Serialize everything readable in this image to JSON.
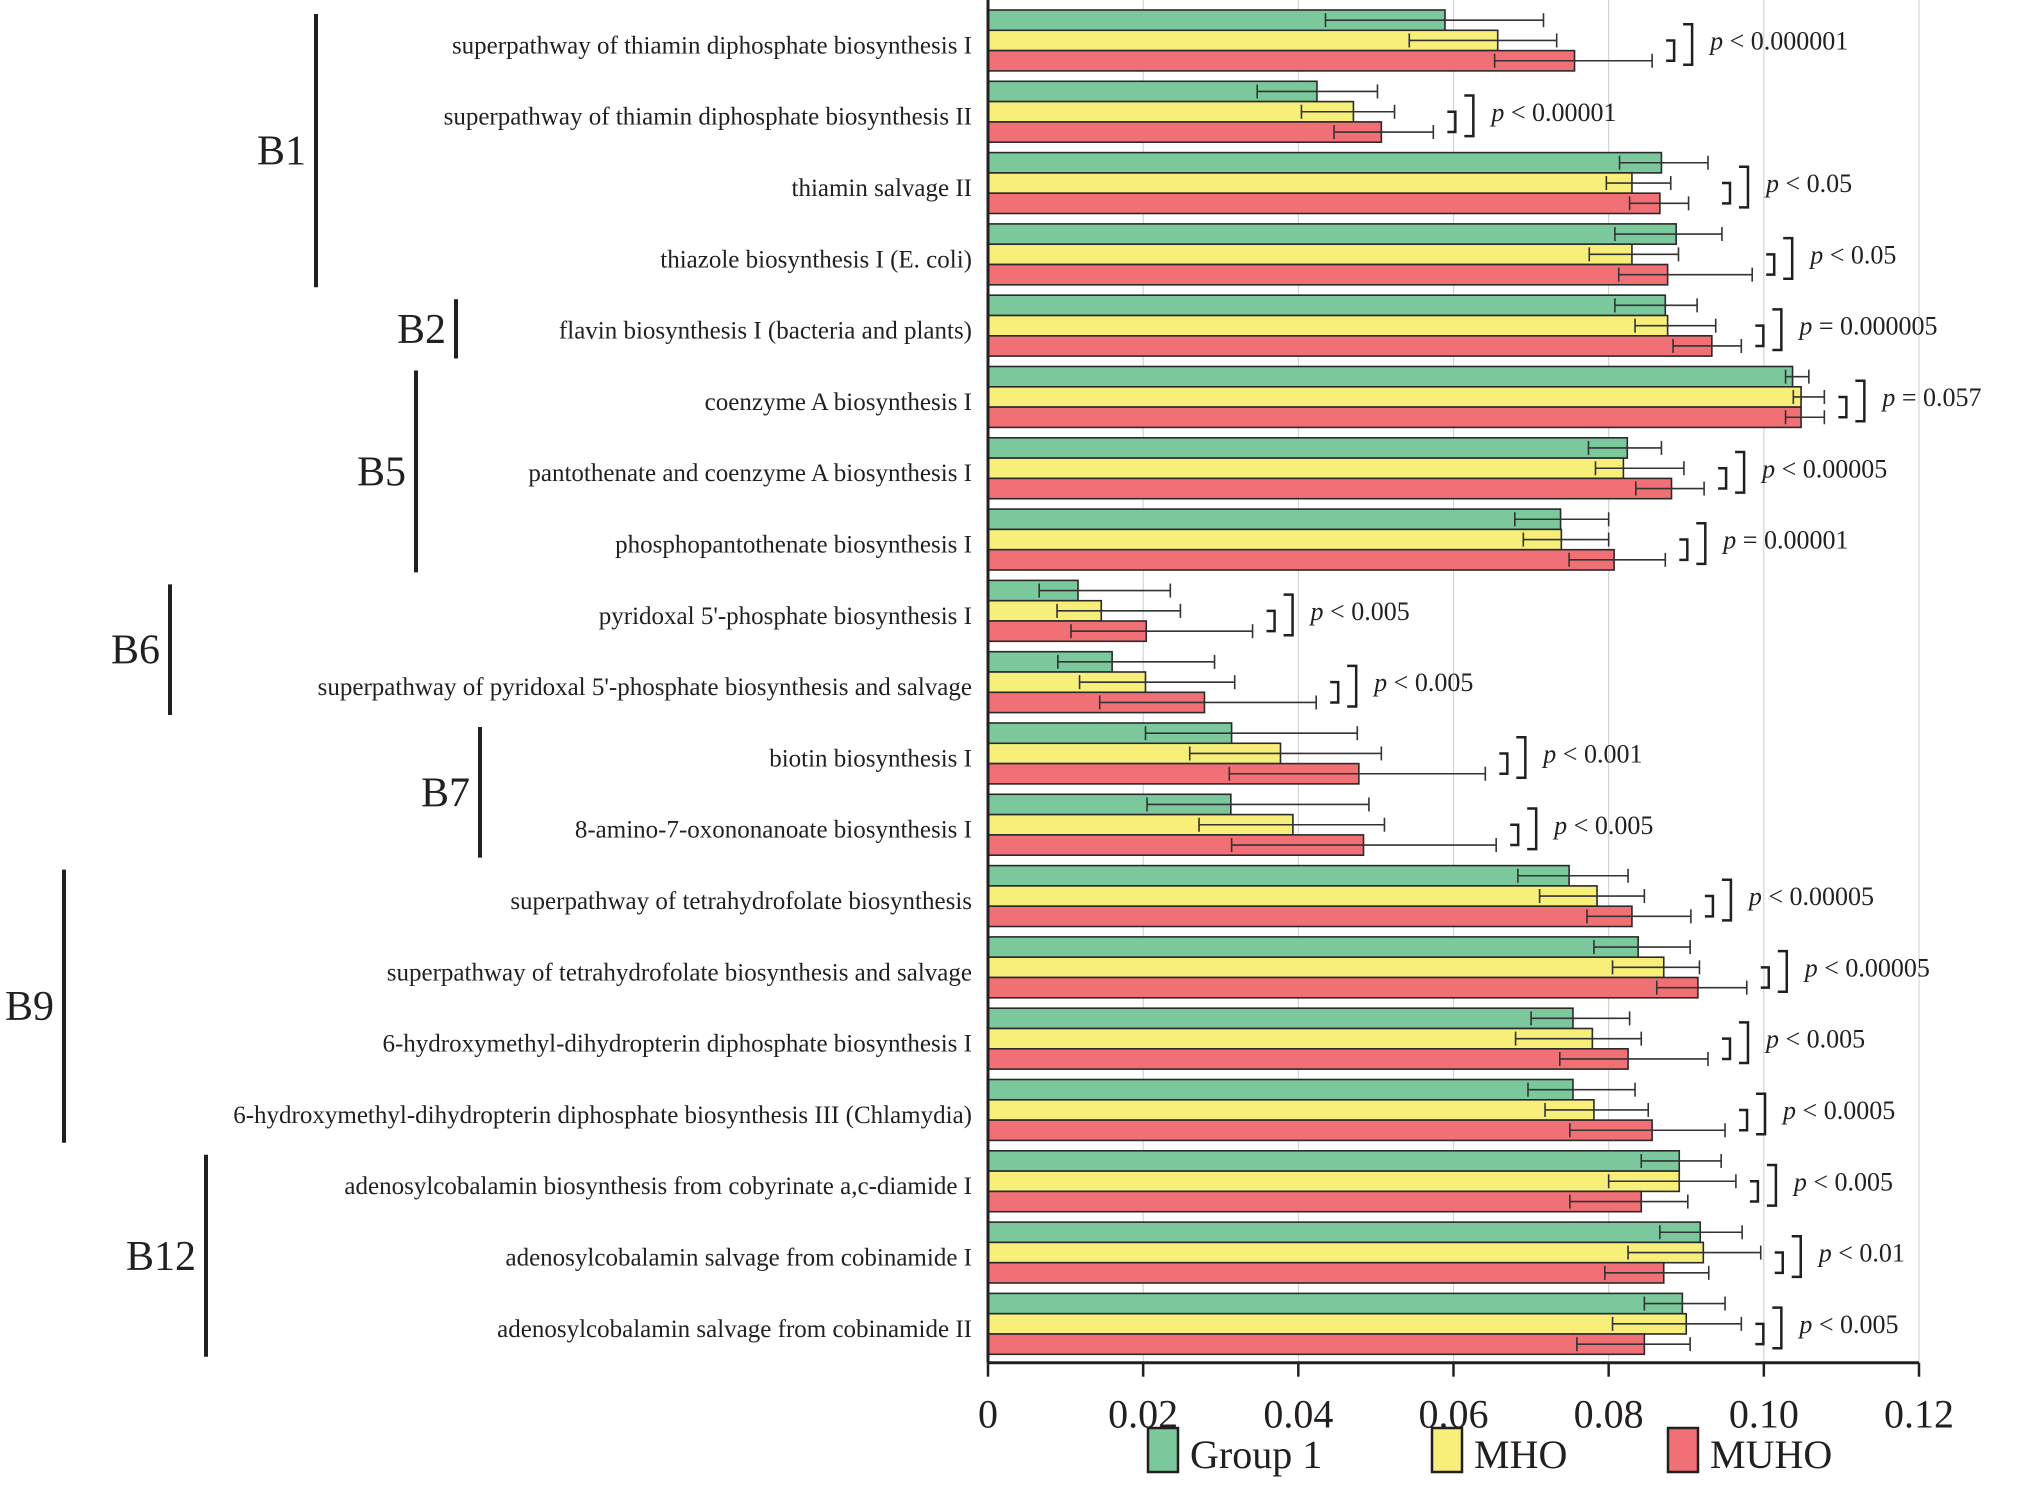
{
  "chart_data": {
    "type": "bar",
    "orientation": "horizontal",
    "title": "",
    "xlabel": "",
    "ylabel": "",
    "xlim": [
      0,
      0.12
    ],
    "x_ticks": [
      "0",
      "0.02",
      "0.04",
      "0.06",
      "0.08",
      "0.10",
      "0.12"
    ],
    "x_tick_values": [
      0,
      0.02,
      0.04,
      0.06,
      0.08,
      0.1,
      0.12
    ],
    "grid": "vertical",
    "legend_position": "bottom-center",
    "series": [
      {
        "name": "Group 1",
        "color": "#7ac89c",
        "values": [
          0.0589,
          0.0424,
          0.0868,
          0.0887,
          0.0873,
          0.1037,
          0.0824,
          0.0738,
          0.0116,
          0.016,
          0.0314,
          0.0313,
          0.0749,
          0.0838,
          0.0754,
          0.0754,
          0.0891,
          0.0918,
          0.0895
        ],
        "err_low": [
          0.0435,
          0.0347,
          0.0814,
          0.0808,
          0.0808,
          0.1028,
          0.0774,
          0.0679,
          0.0066,
          0.009,
          0.0203,
          0.0205,
          0.0683,
          0.0781,
          0.07,
          0.0696,
          0.0842,
          0.0866,
          0.0846
        ],
        "err_high": [
          0.0716,
          0.0502,
          0.0928,
          0.0946,
          0.0914,
          0.1058,
          0.0868,
          0.08,
          0.0235,
          0.0292,
          0.0476,
          0.0491,
          0.0825,
          0.0905,
          0.0827,
          0.0834,
          0.0945,
          0.0972,
          0.095
        ]
      },
      {
        "name": "MHO",
        "color": "#f8ee7a",
        "values": [
          0.0657,
          0.0471,
          0.083,
          0.083,
          0.0876,
          0.1048,
          0.0819,
          0.0739,
          0.0146,
          0.0203,
          0.0377,
          0.0393,
          0.0785,
          0.0871,
          0.0779,
          0.0781,
          0.0891,
          0.0922,
          0.09
        ],
        "err_low": [
          0.0543,
          0.0404,
          0.0797,
          0.0775,
          0.0834,
          0.1038,
          0.0783,
          0.069,
          0.0089,
          0.0118,
          0.026,
          0.0272,
          0.0711,
          0.0805,
          0.068,
          0.0718,
          0.08,
          0.0825,
          0.0805
        ],
        "err_high": [
          0.0733,
          0.0524,
          0.088,
          0.089,
          0.0938,
          0.1078,
          0.0897,
          0.08,
          0.0248,
          0.0318,
          0.0507,
          0.0511,
          0.0846,
          0.0917,
          0.0842,
          0.0851,
          0.0964,
          0.0996,
          0.0971
        ]
      },
      {
        "name": "MUHO",
        "color": "#f07075",
        "values": [
          0.0756,
          0.0507,
          0.0866,
          0.0876,
          0.0933,
          0.1048,
          0.0881,
          0.0807,
          0.0204,
          0.0279,
          0.0478,
          0.0484,
          0.083,
          0.0915,
          0.0825,
          0.0856,
          0.0842,
          0.0871,
          0.0846
        ],
        "err_low": [
          0.0653,
          0.0446,
          0.0827,
          0.0813,
          0.0883,
          0.1028,
          0.0835,
          0.0749,
          0.0107,
          0.0144,
          0.0311,
          0.0314,
          0.0772,
          0.0862,
          0.0737,
          0.075,
          0.075,
          0.0795,
          0.0759
        ],
        "err_high": [
          0.0856,
          0.0574,
          0.0903,
          0.0985,
          0.0971,
          0.1078,
          0.0923,
          0.0873,
          0.0341,
          0.0423,
          0.0641,
          0.0655,
          0.0906,
          0.0978,
          0.0928,
          0.095,
          0.0902,
          0.0929,
          0.0905
        ]
      }
    ],
    "categories": [
      "superpathway of thiamin diphosphate biosynthesis I",
      "superpathway of thiamin diphosphate biosynthesis II",
      "thiamin salvage II",
      "thiazole biosynthesis I (E. coli)",
      "flavin biosynthesis I (bacteria and plants)",
      "coenzyme A biosynthesis I",
      "pantothenate and coenzyme A biosynthesis I",
      "phosphopantothenate biosynthesis I",
      "pyridoxal 5'-phosphate biosynthesis I",
      "superpathway of pyridoxal 5'-phosphate biosynthesis and salvage",
      "biotin biosynthesis I",
      "8-amino-7-oxononanoate biosynthesis I",
      "superpathway of tetrahydrofolate biosynthesis",
      "superpathway of tetrahydrofolate biosynthesis and salvage",
      "6-hydroxymethyl-dihydropterin diphosphate biosynthesis I",
      "6-hydroxymethyl-dihydropterin diphosphate biosynthesis III (Chlamydia)",
      "adenosylcobalamin biosynthesis from cobyrinate a,c-diamide I",
      "adenosylcobalamin salvage from cobinamide I",
      "adenosylcobalamin salvage from cobinamide II"
    ],
    "p_values": [
      "< 0.000001",
      "< 0.00001",
      "< 0.05",
      "< 0.05",
      "= 0.000005",
      "= 0.057",
      "< 0.00005",
      "= 0.00001",
      "< 0.005",
      "< 0.005",
      "< 0.001",
      "< 0.005",
      "< 0.00005",
      "< 0.00005",
      "< 0.005",
      "< 0.0005",
      "< 0.005",
      "< 0.01",
      "< 0.005"
    ],
    "p_symbol": "p",
    "vitamin_groups": [
      {
        "label": "B1",
        "start": 0,
        "end": 3
      },
      {
        "label": "B2",
        "start": 4,
        "end": 4
      },
      {
        "label": "B5",
        "start": 5,
        "end": 7
      },
      {
        "label": "B6",
        "start": 8,
        "end": 9
      },
      {
        "label": "B7",
        "start": 10,
        "end": 11
      },
      {
        "label": "B9",
        "start": 12,
        "end": 15
      },
      {
        "label": "B12",
        "start": 16,
        "end": 18
      }
    ]
  }
}
